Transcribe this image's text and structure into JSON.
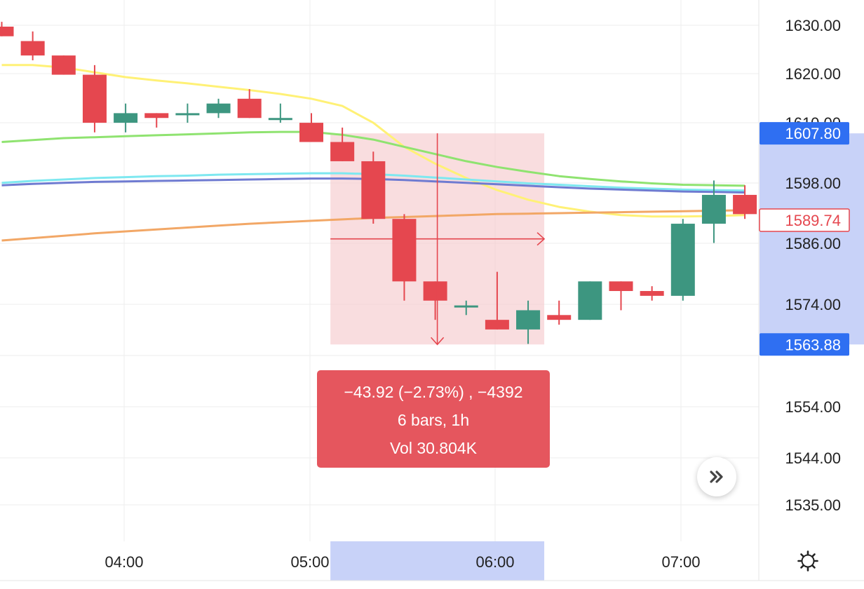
{
  "chart_data": {
    "type": "candlestick",
    "timeframe": "1h",
    "x_ticks": [
      "04:00",
      "05:00",
      "06:00",
      "07:00"
    ],
    "y_ticks": [
      "1630.00",
      "1620.00",
      "1610.00",
      "1598.00",
      "1586.00",
      "1574.00",
      "1554.00",
      "1544.00",
      "1535.00"
    ],
    "y_tick_values": [
      1630,
      1620,
      1610,
      1598,
      1586,
      1574,
      1554,
      1544,
      1535
    ],
    "candles": [
      {
        "o": 1630,
        "h": 1631,
        "l": 1628,
        "c": 1628
      },
      {
        "o": 1627,
        "h": 1629,
        "l": 1623,
        "c": 1624
      },
      {
        "o": 1624,
        "h": 1624,
        "l": 1620,
        "c": 1620
      },
      {
        "o": 1620,
        "h": 1622,
        "l": 1608,
        "c": 1610
      },
      {
        "o": 1610,
        "h": 1614,
        "l": 1608,
        "c": 1612
      },
      {
        "o": 1612,
        "h": 1612,
        "l": 1609,
        "c": 1611
      },
      {
        "o": 1612,
        "h": 1614,
        "l": 1610,
        "c": 1612
      },
      {
        "o": 1612,
        "h": 1615,
        "l": 1611,
        "c": 1614
      },
      {
        "o": 1615,
        "h": 1617,
        "l": 1611,
        "c": 1611
      },
      {
        "o": 1611,
        "h": 1614,
        "l": 1610,
        "c": 1611
      },
      {
        "o": 1610,
        "h": 1612,
        "l": 1606,
        "c": 1606
      },
      {
        "o": 1606,
        "h": 1609,
        "l": 1602,
        "c": 1602
      },
      {
        "o": 1602,
        "h": 1604,
        "l": 1589,
        "c": 1590
      },
      {
        "o": 1590,
        "h": 1591,
        "l": 1573,
        "c": 1577
      },
      {
        "o": 1577,
        "h": 1577,
        "l": 1569,
        "c": 1573
      },
      {
        "o": 1572,
        "h": 1573,
        "l": 1570,
        "c": 1572
      },
      {
        "o": 1569,
        "h": 1579,
        "l": 1567,
        "c": 1567
      },
      {
        "o": 1567,
        "h": 1573,
        "l": 1564,
        "c": 1571
      },
      {
        "o": 1570,
        "h": 1573,
        "l": 1568,
        "c": 1569
      },
      {
        "o": 1569,
        "h": 1577,
        "l": 1569,
        "c": 1577
      },
      {
        "o": 1577,
        "h": 1577,
        "l": 1571,
        "c": 1575
      },
      {
        "o": 1575,
        "h": 1576,
        "l": 1573,
        "c": 1574
      },
      {
        "o": 1574,
        "h": 1590,
        "l": 1573,
        "c": 1589
      },
      {
        "o": 1589,
        "h": 1598,
        "l": 1585,
        "c": 1595
      },
      {
        "o": 1595,
        "h": 1597,
        "l": 1590,
        "c": 1591
      }
    ],
    "moving_averages": [
      {
        "color": "#fff176",
        "values": [
          1622,
          1622,
          1621.5,
          1620.5,
          1619.5,
          1618.8,
          1618.2,
          1617.5,
          1616.8,
          1616,
          1615,
          1613.5,
          1610,
          1605,
          1601.5,
          1598.5,
          1596,
          1594,
          1592.5,
          1591.5,
          1590.8,
          1590.5,
          1590.5,
          1590.6,
          1590.8
        ]
      },
      {
        "color": "#8fe370",
        "values": [
          1606,
          1606.4,
          1606.8,
          1607,
          1607.2,
          1607.4,
          1607.6,
          1607.8,
          1608,
          1608.1,
          1608.1,
          1607.5,
          1606.5,
          1605,
          1603.5,
          1602,
          1600.8,
          1599.8,
          1598.9,
          1598.3,
          1597.8,
          1597.4,
          1597.1,
          1597,
          1596.9
        ]
      },
      {
        "color": "#7ee8f0",
        "values": [
          1597.5,
          1597.9,
          1598.2,
          1598.5,
          1598.7,
          1598.9,
          1599,
          1599.2,
          1599.3,
          1599.4,
          1599.5,
          1599.5,
          1599.3,
          1599,
          1598.6,
          1598.2,
          1597.8,
          1597.4,
          1597.1,
          1596.8,
          1596.5,
          1596.3,
          1596.1,
          1596,
          1595.9
        ]
      },
      {
        "color": "#6f7bd1",
        "values": [
          1597,
          1597.3,
          1597.5,
          1597.7,
          1597.8,
          1597.9,
          1598,
          1598.1,
          1598.2,
          1598.3,
          1598.4,
          1598.4,
          1598.3,
          1598.1,
          1597.8,
          1597.5,
          1597.2,
          1596.9,
          1596.6,
          1596.3,
          1596.1,
          1595.9,
          1595.7,
          1595.6,
          1595.5
        ]
      },
      {
        "color": "#f2a766",
        "values": [
          1585.5,
          1586,
          1586.5,
          1587,
          1587.4,
          1587.8,
          1588.2,
          1588.6,
          1589,
          1589.3,
          1589.6,
          1589.9,
          1590.2,
          1590.4,
          1590.6,
          1590.8,
          1591,
          1591.1,
          1591.2,
          1591.3,
          1591.4,
          1591.5,
          1591.6,
          1591.7,
          1591.8
        ]
      }
    ],
    "measure": {
      "start_index": 11,
      "end_index": 17,
      "high": 1607.8,
      "low": 1563.88,
      "line1": "−43.92 (−2.73%) , −4392",
      "line2": "6 bars, 1h",
      "line3": "Vol 30.804K"
    },
    "price_labels": {
      "measure_high": "1607.80",
      "measure_low": "1563.88",
      "last_price": "1589.74",
      "last_price_value": 1589.74
    },
    "colors": {
      "up": "#3d9680",
      "down": "#e5474f",
      "measure_fill": "#f5c7ca",
      "measure_axis": "#c8d2f8",
      "axis_badge": "#2f6ff2",
      "grid": "#eeeeee",
      "text": "#222222"
    }
  },
  "icons": {
    "scroll_right": "double-chevron-right-icon",
    "settings": "gear-icon"
  }
}
